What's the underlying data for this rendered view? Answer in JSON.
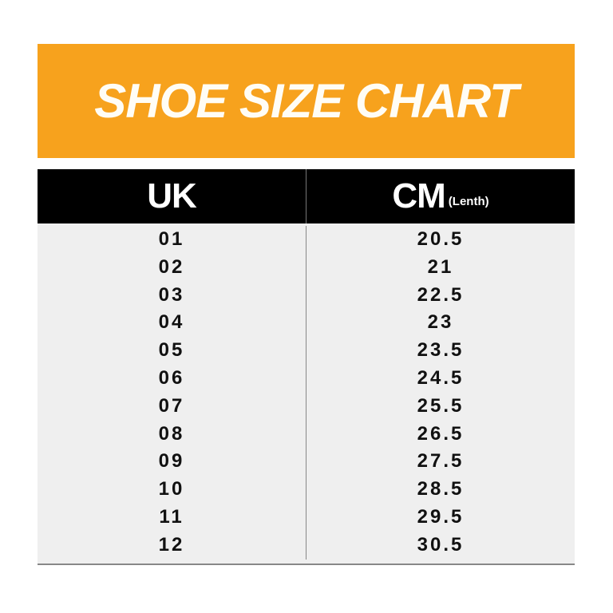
{
  "title": "SHOE SIZE CHART",
  "colors": {
    "banner": "#f7a21d",
    "header": "#000000",
    "rows": "#efefef"
  },
  "headers": {
    "uk": "UK",
    "cm": "CM",
    "cm_note": "(Lenth)"
  },
  "rows": [
    {
      "uk": "01",
      "cm": "20.5"
    },
    {
      "uk": "02",
      "cm": "21"
    },
    {
      "uk": "03",
      "cm": "22.5"
    },
    {
      "uk": "04",
      "cm": "23"
    },
    {
      "uk": "05",
      "cm": "23.5"
    },
    {
      "uk": "06",
      "cm": "24.5"
    },
    {
      "uk": "07",
      "cm": "25.5"
    },
    {
      "uk": "08",
      "cm": "26.5"
    },
    {
      "uk": "09",
      "cm": "27.5"
    },
    {
      "uk": "10",
      "cm": "28.5"
    },
    {
      "uk": "11",
      "cm": "29.5"
    },
    {
      "uk": "12",
      "cm": "30.5"
    }
  ]
}
